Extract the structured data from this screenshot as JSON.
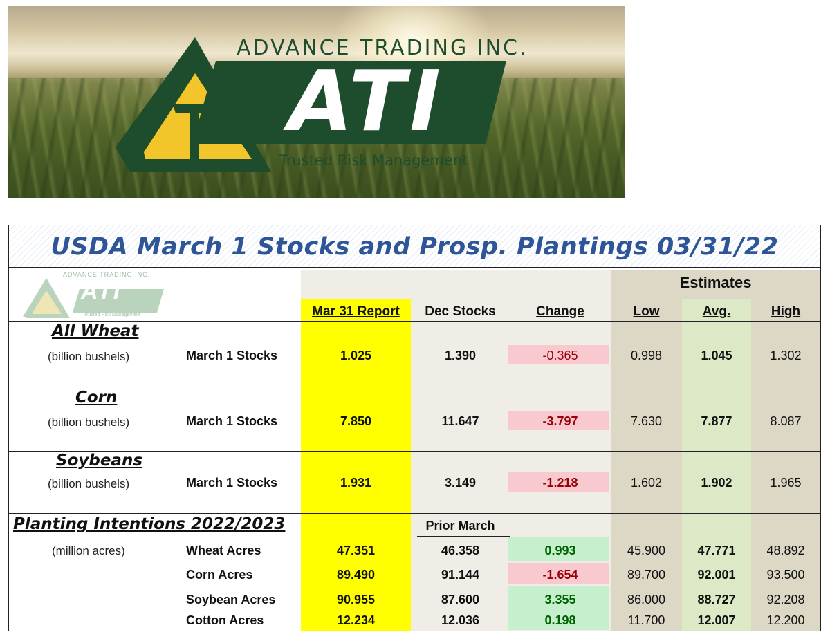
{
  "banner": {
    "company": "ADVANCE TRADING INC.",
    "logo_text": "ATI",
    "tagline": "Trusted Risk Management"
  },
  "report": {
    "title": "USDA March 1 Stocks and Prosp. Plantings 03/31/22",
    "small_logo": {
      "company": "ADVANCE TRADING INC.",
      "logo_text": "ATI",
      "tagline": "Trusted Risk Management"
    },
    "estimates_label": "Estimates",
    "headers": {
      "report": "Mar 31 Report",
      "prior_stocks": "Dec Stocks",
      "change": "Change",
      "low": "Low",
      "avg": "Avg.",
      "high": "High",
      "prior_march": "Prior March"
    },
    "sections": [
      {
        "title": "All Wheat",
        "unit": "(billion bushels)",
        "rows": [
          {
            "label": "March 1 Stocks",
            "report": "1.025",
            "prior": "1.390",
            "change": "-0.365",
            "low": "0.998",
            "avg": "1.045",
            "high": "1.302"
          }
        ]
      },
      {
        "title": "Corn",
        "unit": "(billion bushels)",
        "rows": [
          {
            "label": "March 1 Stocks",
            "report": "7.850",
            "prior": "11.647",
            "change": "-3.797",
            "low": "7.630",
            "avg": "7.877",
            "high": "8.087"
          }
        ]
      },
      {
        "title": "Soybeans",
        "unit": "(billion bushels)",
        "rows": [
          {
            "label": "March 1 Stocks",
            "report": "1.931",
            "prior": "3.149",
            "change": "-1.218",
            "low": "1.602",
            "avg": "1.902",
            "high": "1.965"
          }
        ]
      },
      {
        "title": "Planting Intentions 2022/2023",
        "unit": "(million acres)",
        "rows": [
          {
            "label": "Wheat Acres",
            "report": "47.351",
            "prior": "46.358",
            "change": "0.993",
            "low": "45.900",
            "avg": "47.771",
            "high": "48.892"
          },
          {
            "label": "Corn Acres",
            "report": "89.490",
            "prior": "91.144",
            "change": "-1.654",
            "low": "89.700",
            "avg": "92.001",
            "high": "93.500"
          },
          {
            "label": "Soybean Acres",
            "report": "90.955",
            "prior": "87.600",
            "change": "3.355",
            "low": "86.000",
            "avg": "88.727",
            "high": "92.208"
          },
          {
            "label": "Cotton Acres",
            "report": "12.234",
            "prior": "12.036",
            "change": "0.198",
            "low": "11.700",
            "avg": "12.007",
            "high": "12.200"
          }
        ]
      }
    ],
    "colors": {
      "title": "#2e5597",
      "report_column": "#ffff00",
      "prior_column": "#f0ede6",
      "estimates_column": "#ddd8c6",
      "avg_column": "#dde8c6",
      "negative_fill": "#f8c9cf",
      "negative_text": "#9c0006",
      "positive_fill": "#c6efce",
      "positive_text": "#006100",
      "logo_green": "#1d4d2c",
      "logo_yellow": "#f2c52b"
    }
  }
}
